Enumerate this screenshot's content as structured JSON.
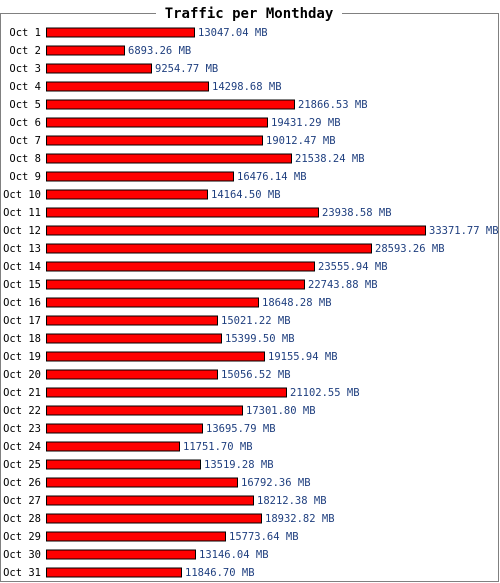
{
  "chart_data": {
    "type": "bar",
    "orientation": "horizontal",
    "title": "Traffic per Monthday",
    "unit": "MB",
    "bar_color": "#ff0000",
    "label_color": "#1f3f7f",
    "border_color": "#808080",
    "categories": [
      "Oct 1",
      "Oct 2",
      "Oct 3",
      "Oct 4",
      "Oct 5",
      "Oct 6",
      "Oct 7",
      "Oct 8",
      "Oct 9",
      "Oct 10",
      "Oct 11",
      "Oct 12",
      "Oct 13",
      "Oct 14",
      "Oct 15",
      "Oct 16",
      "Oct 17",
      "Oct 18",
      "Oct 19",
      "Oct 20",
      "Oct 21",
      "Oct 22",
      "Oct 23",
      "Oct 24",
      "Oct 25",
      "Oct 26",
      "Oct 27",
      "Oct 28",
      "Oct 29",
      "Oct 30",
      "Oct 31"
    ],
    "values": [
      13047.04,
      6893.26,
      9254.77,
      14298.68,
      21866.53,
      19431.29,
      19012.47,
      21538.24,
      16476.14,
      14164.5,
      23938.58,
      33371.77,
      28593.26,
      23555.94,
      22743.88,
      18648.28,
      15021.22,
      15399.5,
      19155.94,
      15056.52,
      21102.55,
      17301.8,
      13695.79,
      11751.7,
      13519.28,
      16792.36,
      18212.38,
      18932.82,
      15773.64,
      13146.04,
      11846.7
    ],
    "value_labels": [
      "13047.04 MB",
      "6893.26 MB",
      "9254.77 MB",
      "14298.68 MB",
      "21866.53 MB",
      "19431.29 MB",
      "19012.47 MB",
      "21538.24 MB",
      "16476.14 MB",
      "14164.50 MB",
      "23938.58 MB",
      "33371.77 MB",
      "28593.26 MB",
      "23555.94 MB",
      "22743.88 MB",
      "18648.28 MB",
      "15021.22 MB",
      "15399.50 MB",
      "19155.94 MB",
      "15056.52 MB",
      "21102.55 MB",
      "17301.80 MB",
      "13695.79 MB",
      "11751.70 MB",
      "13519.28 MB",
      "16792.36 MB",
      "18212.38 MB",
      "18932.82 MB",
      "15773.64 MB",
      "13146.04 MB",
      "11846.70 MB"
    ]
  }
}
